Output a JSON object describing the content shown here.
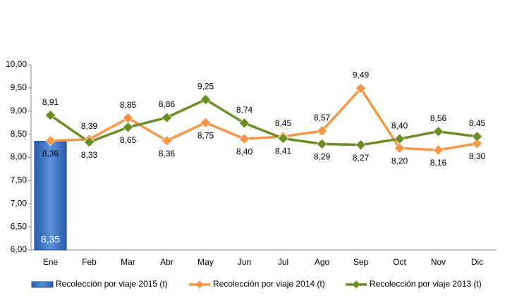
{
  "chart_data": {
    "type": "bar_line",
    "categories": [
      "Ene",
      "Feb",
      "Mar",
      "Abr",
      "May",
      "Jun",
      "Jul",
      "Ago",
      "Sep",
      "Oct",
      "Nov",
      "Dic"
    ],
    "series": [
      {
        "name": "Recolección por viaje 2015 (t)",
        "type": "bar",
        "color": "#3f78c8",
        "values": [
          8.35,
          null,
          null,
          null,
          null,
          null,
          null,
          null,
          null,
          null,
          null,
          null
        ],
        "value_labels": [
          "8,35",
          null,
          null,
          null,
          null,
          null,
          null,
          null,
          null,
          null,
          null,
          null
        ]
      },
      {
        "name": "Recolección por viaje 2014 (t)",
        "type": "line",
        "color": "#f79646",
        "values": [
          8.36,
          8.39,
          8.85,
          8.36,
          8.75,
          8.4,
          8.45,
          8.57,
          9.49,
          8.2,
          8.16,
          8.3
        ],
        "value_labels": [
          "8,36",
          "8,39",
          "8,85",
          "8,36",
          "8,75",
          "8,40",
          "8,45",
          "8,57",
          "9,49",
          "8,20",
          "8,16",
          "8,30"
        ]
      },
      {
        "name": "Recolección por viaje 2013 (t)",
        "type": "line",
        "color": "#6b8e23",
        "values": [
          8.91,
          8.33,
          8.65,
          8.86,
          9.25,
          8.74,
          8.41,
          8.29,
          8.27,
          8.4,
          8.56,
          8.45
        ],
        "value_labels": [
          "8,91",
          "8,33",
          "8,65",
          "8,86",
          "9,25",
          "8,74",
          "8,41",
          "8,29",
          "8,27",
          "8,40",
          "8,56",
          "8,45"
        ]
      }
    ],
    "ylim": [
      6,
      10
    ],
    "yticks": [
      {
        "value": 6,
        "label": "6,00"
      },
      {
        "value": 6.5,
        "label": "6,50"
      },
      {
        "value": 7,
        "label": "7,00"
      },
      {
        "value": 7.5,
        "label": "7,50"
      },
      {
        "value": 8,
        "label": "8,00"
      },
      {
        "value": 8.5,
        "label": "8,50"
      },
      {
        "value": 9,
        "label": "9,00"
      },
      {
        "value": 9.5,
        "label": "9,50"
      },
      {
        "value": 10,
        "label": "10,00"
      }
    ],
    "legend": "bottom"
  }
}
